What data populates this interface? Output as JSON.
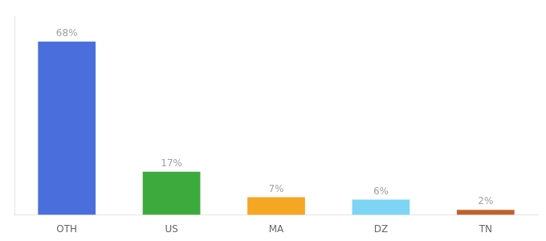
{
  "chart_data": {
    "type": "bar",
    "categories": [
      "OTH",
      "US",
      "MA",
      "DZ",
      "TN"
    ],
    "values": [
      68,
      17,
      7,
      6,
      2
    ],
    "value_labels": [
      "68%",
      "17%",
      "7%",
      "6%",
      "2%"
    ],
    "colors": [
      "#4a6fdc",
      "#3daa3d",
      "#f5a623",
      "#7dd4f5",
      "#c1622a"
    ],
    "ylim": [
      0,
      78
    ],
    "data_labels": true,
    "tick_labels": "x",
    "grid": false
  }
}
